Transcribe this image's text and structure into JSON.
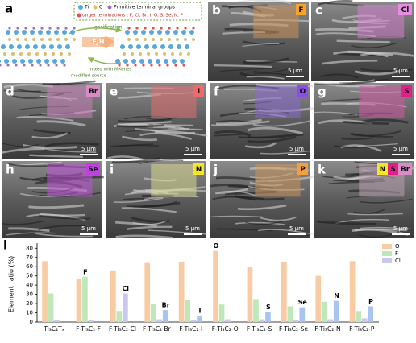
{
  "panel_a": {
    "label": "a",
    "legend_ti": "Ti",
    "legend_c": "C",
    "legend_groups": "Primitive terminal groups",
    "targets": "target terminations : F, Cl, Br, I, O, S, Se, N, P",
    "gasification": "gasification",
    "process": "FJH",
    "mixed": "mixed with MXenes",
    "source": "modified source"
  },
  "panels": [
    {
      "label": "b",
      "scale": "5 μm",
      "tint": "#c8925a",
      "elements": [
        {
          "text": "F",
          "color": "#f5a32a"
        }
      ]
    },
    {
      "label": "c",
      "scale": "5 μm",
      "tint": "#d77fd0",
      "elements": [
        {
          "text": "Cl",
          "color": "#e58ee0"
        }
      ]
    },
    {
      "label": "d",
      "scale": "5 μm",
      "tint": "#c77fb8",
      "elements": [
        {
          "text": "Br",
          "color": "#d98bc4"
        }
      ]
    },
    {
      "label": "e",
      "scale": "5 μm",
      "tint": "#e07070",
      "elements": [
        {
          "text": "I",
          "color": "#f06a6a"
        }
      ]
    },
    {
      "label": "f",
      "scale": "5 μm",
      "tint": "#8a6ad0",
      "elements": [
        {
          "text": "O",
          "color": "#8b4fe8"
        }
      ]
    },
    {
      "label": "g",
      "scale": "5 μm",
      "tint": "#d05aa0",
      "elements": [
        {
          "text": "S",
          "color": "#e0208a"
        }
      ]
    },
    {
      "label": "h",
      "scale": "5 μm",
      "tint": "#c050d8",
      "elements": [
        {
          "text": "Se",
          "color": "#c040e0"
        }
      ]
    },
    {
      "label": "i",
      "scale": "5 μm",
      "tint": "#d8d890",
      "elements": [
        {
          "text": "N",
          "color": "#f2e626"
        }
      ]
    },
    {
      "label": "j",
      "scale": "5 μm",
      "tint": "#c8965a",
      "elements": [
        {
          "text": "P",
          "color": "#f0a040"
        }
      ]
    },
    {
      "label": "k",
      "scale": "5 μm",
      "tint": "#b8a0b0",
      "elements": [
        {
          "text": "N",
          "color": "#f2e626"
        },
        {
          "text": "S",
          "color": "#e0208a"
        },
        {
          "text": "Br",
          "color": "#d98bc4"
        }
      ]
    }
  ],
  "chart_data": {
    "type": "bar",
    "label": "l",
    "y_label": "Element ratio (%)",
    "categories": [
      "Ti₃C₂Tₓ",
      "F-Ti₃C₂-F",
      "F-Ti₃C₂-Cl",
      "F-Ti₃C₂-Br",
      "F-Ti₃C₂-I",
      "F-Ti₃C₂-O",
      "F-Ti₃C₂-S",
      "F-Ti₃C₂-Se",
      "F-Ti₃C₂-N",
      "F-Ti₃C₂-P"
    ],
    "series": [
      {
        "name": "O",
        "color": "#f9cba4",
        "values": [
          66,
          47,
          56,
          64,
          65,
          77,
          60,
          65,
          50,
          66
        ]
      },
      {
        "name": "F",
        "color": "#bfe8b8",
        "values": [
          31,
          49,
          12,
          20,
          24,
          19,
          25,
          17,
          22,
          12
        ]
      },
      {
        "name": "Cl",
        "color": "#c9c8ee",
        "values": [
          2,
          2,
          31,
          3,
          2,
          3,
          3,
          2,
          3,
          4
        ]
      },
      {
        "color": "#aac4f2",
        "values": [
          null,
          null,
          null,
          13,
          7,
          null,
          11,
          16,
          23,
          17
        ]
      }
    ],
    "annotations": [
      {
        "text": "F",
        "series": 1,
        "index": 1
      },
      {
        "text": "Cl",
        "series": 2,
        "index": 2
      },
      {
        "text": "Br",
        "series": 3,
        "index": 3
      },
      {
        "text": "I",
        "series": 3,
        "index": 4
      },
      {
        "text": "O",
        "series": 0,
        "index": 5
      },
      {
        "text": "S",
        "series": 3,
        "index": 6
      },
      {
        "text": "Se",
        "series": 3,
        "index": 7
      },
      {
        "text": "N",
        "series": 3,
        "index": 8
      },
      {
        "text": "P",
        "series": 3,
        "index": 9
      }
    ],
    "ylim": [
      0,
      82
    ],
    "yticks": [
      0,
      10,
      20,
      30,
      40,
      50,
      60,
      70,
      80
    ],
    "legend": "top-right"
  }
}
